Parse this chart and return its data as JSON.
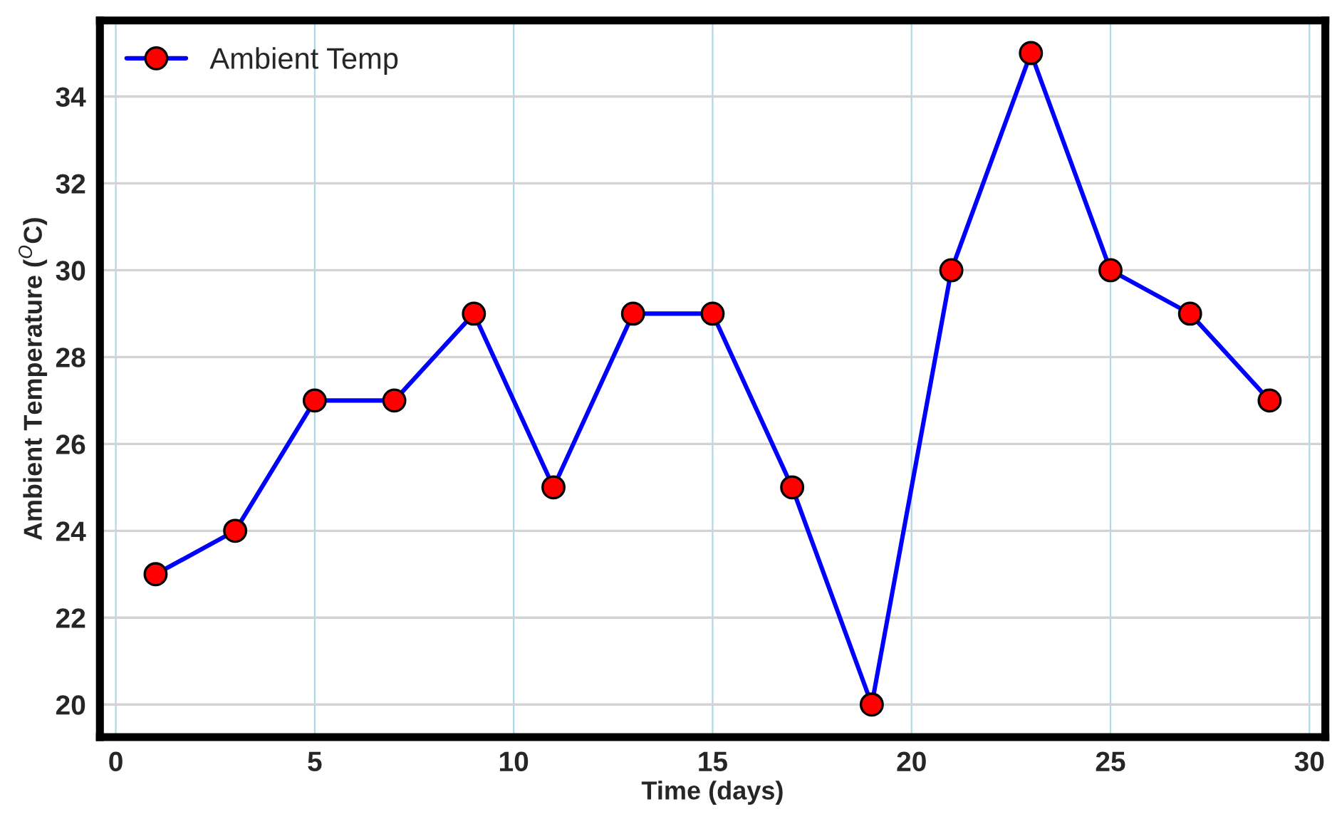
{
  "chart_data": {
    "type": "line",
    "xlabel": "Time (days)",
    "ylabel": "Ambient Temperature ($^{O}$C)",
    "x": [
      1,
      3,
      5,
      7,
      9,
      11,
      13,
      15,
      17,
      19,
      21,
      23,
      25,
      27,
      29
    ],
    "series": [
      {
        "name": "Ambient Temp",
        "color": "#0000ff",
        "values": [
          23,
          24,
          27,
          27,
          29,
          25,
          29,
          29,
          25,
          20,
          30,
          35,
          30,
          29,
          27
        ]
      }
    ],
    "xlim": [
      -0.4,
      30.4
    ],
    "xticks": [
      0,
      5,
      10,
      15,
      20,
      25,
      30
    ],
    "ylim": [
      19.25,
      35.75
    ],
    "yticks": [
      20,
      22,
      24,
      26,
      28,
      30,
      32,
      34
    ],
    "grid": true,
    "legend": "top left",
    "marker": "circle",
    "line_style": "solid"
  }
}
